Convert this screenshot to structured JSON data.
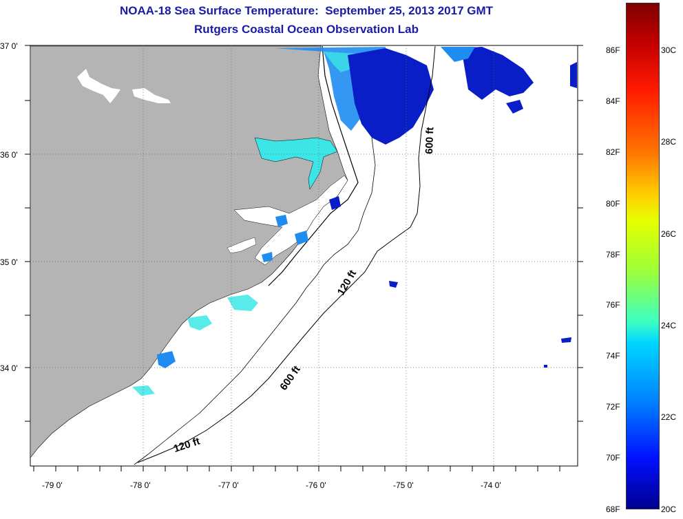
{
  "header": {
    "title": "NOAA-18 Sea Surface Temperature:  September 25, 2013 2017 GMT",
    "subtitle": "Rutgers Coastal Ocean Observation Lab"
  },
  "axes": {
    "lat_labels": [
      "37 0'",
      "36 0'",
      "35 0'",
      "34 0'"
    ],
    "lon_labels": [
      "-79 0'",
      "-78 0'",
      "-77 0'",
      "-76 0'",
      "-75 0'",
      "-74 0'"
    ]
  },
  "contours": {
    "label_120_ne": "120 ft",
    "label_600_ne": "600 ft",
    "label_600_sw": "600 ft",
    "label_120_sw": "120 ft"
  },
  "colorbar": {
    "fahrenheit": [
      "86F",
      "84F",
      "82F",
      "80F",
      "78F",
      "76F",
      "74F",
      "72F",
      "70F",
      "68F"
    ],
    "celsius": [
      "30C",
      "28C",
      "26C",
      "24C",
      "22C",
      "20C"
    ]
  },
  "colors": {
    "land": "#b4b4b4",
    "title": "#1a1aa8",
    "sst_cold": "#0a1ec8",
    "sst_mid": "#1e8cf0",
    "sst_warm": "#3ce6e6"
  }
}
